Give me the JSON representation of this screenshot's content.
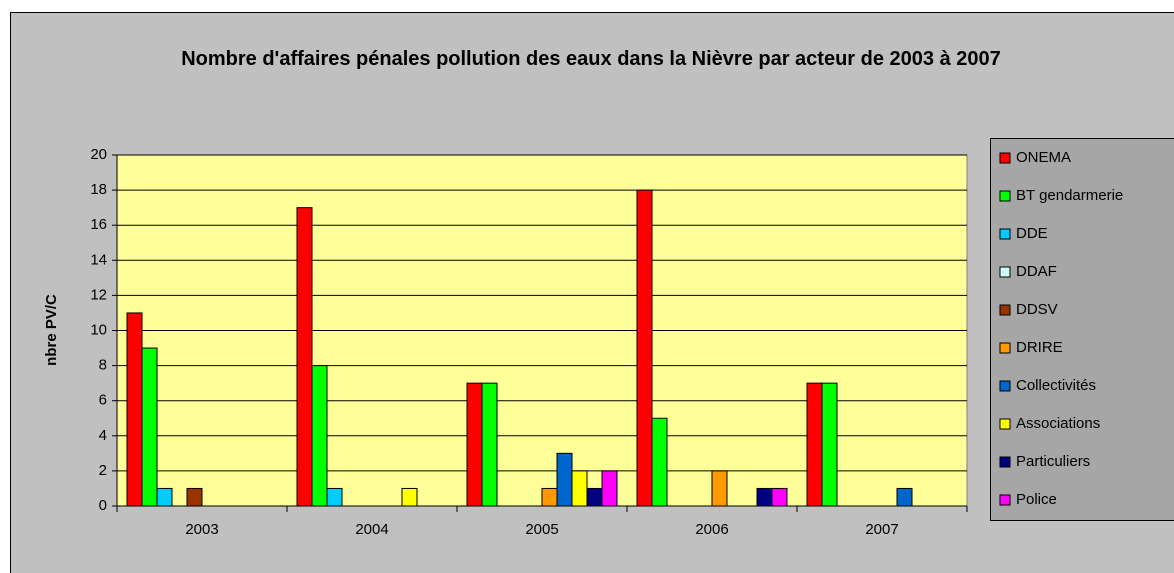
{
  "chart_data": {
    "type": "bar",
    "title": "Nombre d'affaires pénales pollution des eaux dans la Nièvre par acteur de 2003 à 2007",
    "ylabel": "nbre PV/C",
    "categories": [
      "2003",
      "2004",
      "2005",
      "2006",
      "2007"
    ],
    "series": [
      {
        "name": "ONEMA",
        "color": "#ff0000",
        "values": [
          11,
          17,
          7,
          18,
          7
        ]
      },
      {
        "name": "BT gendarmerie",
        "color": "#00ff00",
        "values": [
          9,
          8,
          7,
          5,
          7
        ]
      },
      {
        "name": "DDE",
        "color": "#00ccff",
        "values": [
          1,
          1,
          0,
          0,
          0
        ]
      },
      {
        "name": "DDAF",
        "color": "#ccffff",
        "values": [
          0,
          0,
          0,
          0,
          0
        ]
      },
      {
        "name": "DDSV",
        "color": "#993300",
        "values": [
          1,
          0,
          0,
          0,
          0
        ]
      },
      {
        "name": "DRIRE",
        "color": "#ff9900",
        "values": [
          0,
          0,
          1,
          2,
          0
        ]
      },
      {
        "name": "Collectivités",
        "color": "#0066cc",
        "values": [
          0,
          0,
          3,
          0,
          1
        ]
      },
      {
        "name": "Associations",
        "color": "#ffff00",
        "values": [
          0,
          1,
          2,
          0,
          0
        ]
      },
      {
        "name": "Particuliers",
        "color": "#000080",
        "values": [
          0,
          0,
          1,
          1,
          0
        ]
      },
      {
        "name": "Police",
        "color": "#ff00ff",
        "values": [
          0,
          0,
          2,
          1,
          0
        ]
      }
    ],
    "ylim": [
      0,
      20
    ],
    "yticks": [
      0,
      2,
      4,
      6,
      8,
      10,
      12,
      14,
      16,
      18,
      20
    ],
    "grid": true,
    "legend": "right"
  }
}
